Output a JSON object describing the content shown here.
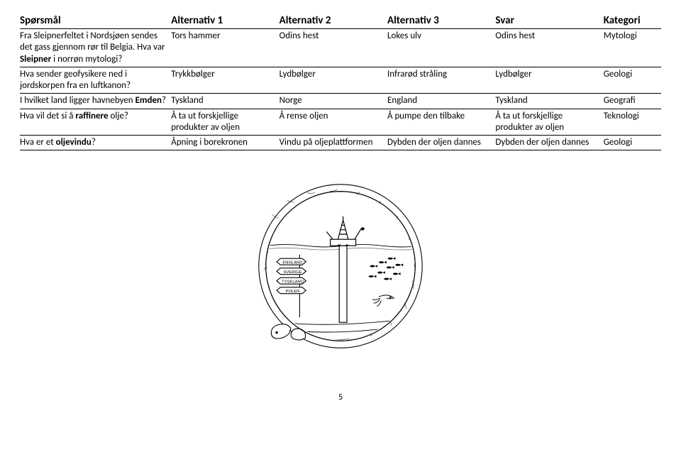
{
  "headers": {
    "q": "Spørsmål",
    "a1": "Alternativ 1",
    "a2": "Alternativ 2",
    "a3": "Alternativ 3",
    "ans": "Svar",
    "cat": "Kategori"
  },
  "qa": {
    "rows": [
      {
        "q_html": "Fra Sleipnerfeltet i Nordsjøen sendes det gass gjennom rør til Belgia. Hva var <b>Sleipner</b> i norrøn mytologi?",
        "a1": "Tors hammer",
        "a2": "Odins hest",
        "a3": "Lokes ulv",
        "ans": "Odins hest",
        "cat": "Mytologi"
      },
      {
        "q_html": "Hva sender geofysikere ned i jordskorpen fra en luftkanon?",
        "a1": "Trykkbølger",
        "a2": "Lydbølger",
        "a3": "Infrarød stråling",
        "ans": "Lydbølger",
        "cat": "Geologi"
      },
      {
        "q_html": "I hvilket land ligger havnebyen <b>Emden</b>?",
        "a1": "Tyskland",
        "a2": "Norge",
        "a3": "England",
        "ans": "Tyskland",
        "cat": "Geografi"
      },
      {
        "q_html": "Hva vil det si å <b>raffinere</b> olje?",
        "a1": "Å ta ut forskjellige produkter av oljen",
        "a2": "Å rense oljen",
        "a3": "Å pumpe den tilbake",
        "ans": "Å ta ut forskjellige produkter av oljen",
        "cat": "Teknologi"
      },
      {
        "q_html": "Hva er et <b>oljevindu</b>?",
        "a1": "Åpning i borekronen",
        "a2": "Vindu på oljeplattformen",
        "a3": "Dybden der oljen dannes",
        "ans": "Dybden der oljen dannes",
        "cat": "Geologi"
      }
    ]
  },
  "illustration": {
    "circle_stroke": "#000000",
    "circle_fill": "#ffffff",
    "horizon_y": 0.32,
    "rig_x": 0.42,
    "sign_labels": [
      "ENGLAND",
      "SVERIGE",
      "TYSKLAND",
      "POLEN"
    ]
  },
  "page_number": "5"
}
